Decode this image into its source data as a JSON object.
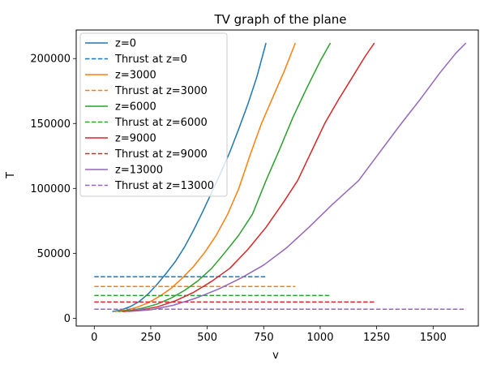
{
  "chart_data": {
    "type": "line",
    "title": "TV graph of the plane",
    "xlabel": "v",
    "ylabel": "T",
    "xlim": [
      -80,
      1700
    ],
    "ylim": [
      -6000,
      222000
    ],
    "xticks": [
      0,
      250,
      500,
      750,
      1000,
      1250,
      1500
    ],
    "yticks": [
      0,
      50000,
      100000,
      150000,
      200000
    ],
    "grid": false,
    "legend_placement": "top-left",
    "series": [
      {
        "name": "z=0",
        "color": "#1f77b4",
        "style": "solid",
        "x": [
          80,
          120,
          160,
          200,
          240,
          280,
          320,
          360,
          400,
          440,
          480,
          520,
          560,
          600,
          640,
          680,
          720,
          760
        ],
        "y": [
          5200,
          6500,
          9000,
          13000,
          19000,
          26500,
          35000,
          44000,
          55000,
          68000,
          82000,
          97000,
          112000,
          128000,
          146000,
          165000,
          186000,
          212000
        ]
      },
      {
        "name": "Thrust at z=0",
        "color": "#1f77b4",
        "style": "dashed",
        "x": [
          0,
          760
        ],
        "y": [
          32000,
          32000
        ]
      },
      {
        "name": "z=3000",
        "color": "#ff7f0e",
        "style": "solid",
        "x": [
          90,
          140,
          190,
          240,
          290,
          340,
          390,
          440,
          490,
          540,
          590,
          640,
          690,
          740,
          790,
          840,
          890
        ],
        "y": [
          5200,
          6200,
          8500,
          12000,
          17000,
          23000,
          31000,
          40000,
          51000,
          64000,
          80000,
          100000,
          126000,
          150000,
          170000,
          190000,
          212000
        ]
      },
      {
        "name": "Thrust at z=3000",
        "color": "#ff7f0e",
        "style": "dashed",
        "x": [
          0,
          890
        ],
        "y": [
          24500,
          24500
        ]
      },
      {
        "name": "z=6000",
        "color": "#2ca02c",
        "style": "solid",
        "x": [
          105,
          160,
          220,
          280,
          340,
          400,
          460,
          520,
          580,
          640,
          700,
          760,
          820,
          880,
          940,
          1000,
          1045
        ],
        "y": [
          5200,
          6000,
          8000,
          11000,
          15500,
          21500,
          29000,
          38500,
          51000,
          64000,
          80000,
          106000,
          130000,
          155000,
          177000,
          198000,
          212000
        ]
      },
      {
        "name": "Thrust at z=6000",
        "color": "#2ca02c",
        "style": "dashed",
        "x": [
          0,
          1045
        ],
        "y": [
          17500,
          17500
        ]
      },
      {
        "name": "z=9000",
        "color": "#d62728",
        "style": "solid",
        "x": [
          125,
          200,
          280,
          360,
          440,
          520,
          600,
          680,
          760,
          840,
          900,
          960,
          1020,
          1080,
          1140,
          1200,
          1240
        ],
        "y": [
          5200,
          6200,
          8800,
          13500,
          20000,
          28500,
          38500,
          53000,
          70000,
          90000,
          106000,
          128000,
          150000,
          168000,
          185000,
          202000,
          212000
        ]
      },
      {
        "name": "Thrust at z=9000",
        "color": "#d62728",
        "style": "dashed",
        "x": [
          0,
          1240
        ],
        "y": [
          12500,
          12500
        ]
      },
      {
        "name": "z=13000",
        "color": "#9467bd",
        "style": "solid",
        "x": [
          150,
          250,
          350,
          450,
          550,
          650,
          750,
          850,
          950,
          1050,
          1170,
          1260,
          1350,
          1440,
          1530,
          1600,
          1645
        ],
        "y": [
          5200,
          6500,
          10000,
          15500,
          22500,
          31000,
          41000,
          54000,
          70000,
          87000,
          106000,
          127000,
          148000,
          168000,
          189000,
          204000,
          212000
        ]
      },
      {
        "name": "Thrust at z=13000",
        "color": "#9467bd",
        "style": "dashed",
        "x": [
          0,
          1645
        ],
        "y": [
          7000,
          7000
        ]
      }
    ]
  }
}
